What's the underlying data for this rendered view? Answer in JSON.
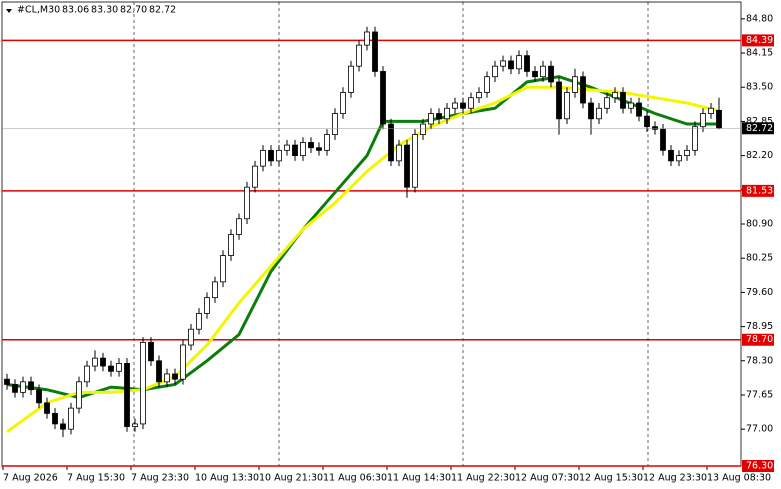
{
  "chart_data": {
    "type": "candlestick",
    "title": "#CL,M30",
    "header_values": [
      83.06,
      83.3,
      82.7,
      82.72
    ],
    "header_value_labels": [
      "83.06",
      "83.30",
      "82.70",
      "82.72"
    ],
    "categories": [
      "7 Aug 2026",
      "7 Aug 15:30",
      "7 Aug 23:30",
      "10 Aug 13:30",
      "10 Aug 21:30",
      "11 Aug 06:30",
      "11 Aug 14:30",
      "11 Aug 22:30",
      "12 Aug 07:30",
      "12 Aug 15:30",
      "12 Aug 23:30",
      "13 Aug 08:30"
    ],
    "ylim": [
      76.3,
      85.12
    ],
    "yticks": [
      {
        "value": 84.8,
        "label": "84.80"
      },
      {
        "value": 84.15,
        "label": "84.15"
      },
      {
        "value": 83.5,
        "label": "83.50"
      },
      {
        "value": 82.85,
        "label": "82.85"
      },
      {
        "value": 82.2,
        "label": "82.20"
      },
      {
        "value": 81.55,
        "label": "81.55"
      },
      {
        "value": 80.9,
        "label": "80.90"
      },
      {
        "value": 80.25,
        "label": "80.25"
      },
      {
        "value": 79.6,
        "label": "79.60"
      },
      {
        "value": 78.95,
        "label": "78.95"
      },
      {
        "value": 78.3,
        "label": "78.30"
      },
      {
        "value": 77.65,
        "label": "77.65"
      },
      {
        "value": 77.0,
        "label": "77.00"
      }
    ],
    "candles": [
      [
        77.95,
        78.05,
        77.75,
        77.85
      ],
      [
        77.85,
        77.95,
        77.6,
        77.7
      ],
      [
        77.7,
        78.0,
        77.6,
        77.9
      ],
      [
        77.9,
        78.0,
        77.65,
        77.75
      ],
      [
        77.75,
        77.85,
        77.4,
        77.5
      ],
      [
        77.5,
        77.6,
        77.2,
        77.3
      ],
      [
        77.3,
        77.4,
        77.0,
        77.1
      ],
      [
        77.1,
        77.2,
        76.85,
        77.0
      ],
      [
        77.0,
        77.5,
        76.9,
        77.4
      ],
      [
        77.4,
        78.0,
        77.3,
        77.9
      ],
      [
        77.9,
        78.3,
        77.8,
        78.2
      ],
      [
        78.2,
        78.5,
        78.1,
        78.35
      ],
      [
        78.35,
        78.45,
        78.1,
        78.2
      ],
      [
        78.2,
        78.3,
        78.0,
        78.1
      ],
      [
        78.1,
        78.35,
        78.0,
        78.25
      ],
      [
        78.25,
        78.35,
        76.95,
        77.05
      ],
      [
        77.05,
        77.2,
        76.95,
        77.1
      ],
      [
        77.1,
        78.75,
        77.0,
        78.65
      ],
      [
        78.65,
        78.75,
        78.2,
        78.3
      ],
      [
        78.3,
        78.4,
        77.8,
        77.9
      ],
      [
        77.9,
        78.15,
        77.8,
        78.05
      ],
      [
        78.05,
        78.15,
        77.85,
        77.95
      ],
      [
        77.95,
        78.7,
        77.85,
        78.6
      ],
      [
        78.6,
        79.0,
        78.5,
        78.9
      ],
      [
        78.9,
        79.3,
        78.8,
        79.2
      ],
      [
        79.2,
        79.6,
        79.1,
        79.5
      ],
      [
        79.5,
        79.9,
        79.4,
        79.8
      ],
      [
        79.8,
        80.4,
        79.7,
        80.3
      ],
      [
        80.3,
        80.8,
        80.2,
        80.7
      ],
      [
        80.7,
        81.1,
        80.6,
        81.0
      ],
      [
        81.0,
        81.7,
        80.9,
        81.6
      ],
      [
        81.6,
        82.1,
        81.5,
        82.0
      ],
      [
        82.0,
        82.4,
        81.9,
        82.3
      ],
      [
        82.3,
        82.4,
        82.0,
        82.1
      ],
      [
        82.1,
        82.4,
        82.0,
        82.3
      ],
      [
        82.3,
        82.5,
        82.2,
        82.4
      ],
      [
        82.4,
        82.5,
        82.1,
        82.2
      ],
      [
        82.2,
        82.55,
        82.1,
        82.45
      ],
      [
        82.45,
        82.55,
        82.25,
        82.35
      ],
      [
        82.35,
        82.45,
        82.2,
        82.3
      ],
      [
        82.3,
        82.7,
        82.2,
        82.6
      ],
      [
        82.6,
        83.1,
        82.5,
        83.0
      ],
      [
        83.0,
        83.5,
        82.9,
        83.4
      ],
      [
        83.4,
        84.0,
        83.3,
        83.9
      ],
      [
        83.9,
        84.4,
        83.8,
        84.3
      ],
      [
        84.3,
        84.65,
        84.2,
        84.55
      ],
      [
        84.55,
        84.65,
        83.7,
        83.8
      ],
      [
        83.8,
        83.9,
        82.7,
        82.8
      ],
      [
        82.8,
        82.9,
        82.0,
        82.1
      ],
      [
        82.1,
        82.5,
        82.0,
        82.4
      ],
      [
        82.4,
        82.5,
        81.4,
        81.6
      ],
      [
        81.6,
        82.7,
        81.5,
        82.6
      ],
      [
        82.6,
        82.9,
        82.5,
        82.8
      ],
      [
        82.8,
        83.1,
        82.7,
        83.0
      ],
      [
        83.0,
        83.1,
        82.8,
        82.9
      ],
      [
        82.9,
        83.2,
        82.8,
        83.1
      ],
      [
        83.1,
        83.3,
        83.0,
        83.2
      ],
      [
        83.2,
        83.3,
        83.0,
        83.1
      ],
      [
        83.1,
        83.4,
        83.0,
        83.3
      ],
      [
        83.3,
        83.5,
        83.2,
        83.4
      ],
      [
        83.4,
        83.8,
        83.3,
        83.7
      ],
      [
        83.7,
        84.0,
        83.6,
        83.9
      ],
      [
        83.9,
        84.1,
        83.8,
        84.0
      ],
      [
        84.0,
        84.1,
        83.75,
        83.85
      ],
      [
        83.85,
        84.2,
        83.75,
        84.1
      ],
      [
        84.1,
        84.2,
        83.7,
        83.8
      ],
      [
        83.8,
        83.9,
        83.6,
        83.7
      ],
      [
        83.7,
        84.0,
        83.6,
        83.9
      ],
      [
        83.9,
        84.0,
        83.5,
        83.6
      ],
      [
        83.6,
        83.7,
        82.6,
        82.9
      ],
      [
        82.9,
        83.5,
        82.8,
        83.4
      ],
      [
        83.4,
        83.85,
        83.3,
        83.7
      ],
      [
        83.7,
        83.8,
        83.1,
        83.2
      ],
      [
        83.2,
        83.3,
        82.6,
        82.9
      ],
      [
        82.9,
        83.2,
        82.8,
        83.1
      ],
      [
        83.1,
        83.4,
        83.0,
        83.3
      ],
      [
        83.3,
        83.5,
        83.2,
        83.4
      ],
      [
        83.4,
        83.5,
        83.0,
        83.1
      ],
      [
        83.1,
        83.3,
        83.0,
        83.2
      ],
      [
        83.2,
        83.3,
        82.85,
        82.95
      ],
      [
        82.95,
        83.05,
        82.65,
        82.75
      ],
      [
        82.75,
        82.85,
        82.6,
        82.7
      ],
      [
        82.7,
        82.8,
        82.2,
        82.3
      ],
      [
        82.3,
        82.4,
        82.0,
        82.1
      ],
      [
        82.1,
        82.3,
        82.0,
        82.2
      ],
      [
        82.2,
        82.4,
        82.1,
        82.3
      ],
      [
        82.3,
        82.85,
        82.2,
        82.75
      ],
      [
        82.75,
        83.1,
        82.65,
        83.0
      ],
      [
        83.0,
        83.2,
        82.9,
        83.1
      ],
      [
        83.06,
        83.3,
        82.7,
        82.72
      ]
    ],
    "moving_averages": [
      {
        "color": "#0a7d0a",
        "x": [
          0,
          5,
          9,
          13,
          17,
          21,
          25,
          29,
          33,
          37,
          41,
          45,
          47,
          52,
          57,
          61,
          65,
          69,
          73,
          77,
          81,
          85,
          89
        ],
        "values": [
          77.85,
          77.75,
          77.6,
          77.8,
          77.75,
          77.85,
          78.3,
          78.8,
          80.0,
          80.8,
          81.5,
          82.2,
          82.85,
          82.85,
          83.0,
          83.1,
          83.6,
          83.7,
          83.5,
          83.25,
          83.0,
          82.8,
          82.8
        ]
      },
      {
        "color": "#f5f500",
        "x": [
          0,
          5,
          9,
          13,
          17,
          21,
          25,
          29,
          33,
          37,
          41,
          45,
          49,
          53,
          57,
          61,
          65,
          69,
          73,
          77,
          81,
          85,
          89
        ],
        "values": [
          76.95,
          77.5,
          77.7,
          77.7,
          77.75,
          78.0,
          78.6,
          79.4,
          80.1,
          80.8,
          81.3,
          81.9,
          82.4,
          82.75,
          83.0,
          83.2,
          83.5,
          83.5,
          83.45,
          83.4,
          83.3,
          83.2,
          83.05
        ]
      }
    ],
    "levels": [
      {
        "value": 84.39,
        "label": "84.39"
      },
      {
        "value": 81.53,
        "label": "81.53"
      },
      {
        "value": 78.7,
        "label": "78.70"
      },
      {
        "value": 76.3,
        "label": "76.30"
      }
    ],
    "level_color": "#e00000",
    "current_price": 82.72,
    "up_color": "#ffffff",
    "down_color": "#000000"
  }
}
